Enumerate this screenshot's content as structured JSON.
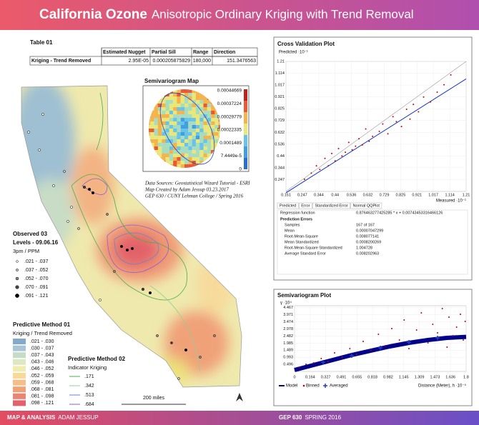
{
  "header": {
    "title": "California Ozone",
    "subtitle": "Anisotropic Ordinary Kriging with Trend Removal"
  },
  "table": {
    "title": "Table 01",
    "columns": [
      "Estimated Nugget",
      "Partial Sill",
      "Range",
      "Direction"
    ],
    "rows": [
      [
        "Kriging - Trend Removed",
        "2.95E-05",
        "0.000205875829",
        "180,000",
        "151.3476563"
      ]
    ]
  },
  "semivariogram_map": {
    "title": "Semivariogram Map",
    "scale": [
      "0.00044669",
      "0.00037224",
      "0.00029779",
      "0.00022335",
      "0.0001489",
      "7.4449e-5",
      "0"
    ]
  },
  "sources": [
    "Data Sources: Geostatistical Wizard Tutorial - ESRI",
    "Map Created by Adam Jessup 03.23.2017",
    "GEP 630 / CUNY Lehman College / Spring 2016"
  ],
  "observed": {
    "title": [
      "Observed 03",
      "Levels - 09.06.16"
    ],
    "unit": "3pm / PPM",
    "classes": [
      ".021 - .037",
      ".037 - .052",
      ".052 - .070",
      ".070 - .091",
      ".091 - .121"
    ],
    "colors": [
      "#ffffff",
      "#c8c8c8",
      "#8c8c8c",
      "#444444",
      "#000000"
    ]
  },
  "method01": {
    "title": "Predictive Method 01",
    "subtitle": "Kriging / Trend Removed",
    "classes": [
      ".021 - .030",
      ".030 - .037",
      ".037 - .043",
      ".043 - .046",
      ".046 - .052",
      ".052 - .059",
      ".059 - .068",
      ".068 - .081",
      ".081 - .098",
      ".098 - .121"
    ],
    "colors": [
      "#84aacb",
      "#a9c4d4",
      "#c7dcc8",
      "#dce8c0",
      "#f0ecb0",
      "#f7da9b",
      "#f5be87",
      "#f0a178",
      "#eb8472",
      "#e2626b"
    ]
  },
  "method02": {
    "title": "Predictive Method 02",
    "subtitle": "Indicator Kriging",
    "classes": [
      ".171",
      ".342",
      ".513",
      ".684"
    ],
    "colors": [
      "#4cae4c",
      "#8fd09a",
      "#5f86d6",
      "#8a5fd0"
    ]
  },
  "scale_label": "200 miles",
  "cross_validation": {
    "title": "Cross Validation Plot",
    "y_label": "Predicted ·10⁻¹",
    "x_label": "Measured ·10⁻¹",
    "xlim": [
      0.151,
      1.21
    ],
    "ylim": [
      0.151,
      1.21
    ],
    "xticks": [
      0.151,
      0.247,
      0.344,
      0.44,
      0.536,
      0.632,
      0.729,
      0.825,
      0.921,
      1.017,
      1.114,
      1.21
    ],
    "yticks": [
      0.247,
      0.344,
      0.44,
      0.536,
      0.632,
      0.729,
      0.825,
      0.921,
      1.017,
      1.114,
      1.21
    ],
    "x": [
      0.26,
      0.3,
      0.33,
      0.35,
      0.38,
      0.4,
      0.42,
      0.44,
      0.46,
      0.48,
      0.5,
      0.52,
      0.54,
      0.56,
      0.58,
      0.6,
      0.62,
      0.64,
      0.66,
      0.7,
      0.72,
      0.75,
      0.78,
      0.8,
      0.83,
      0.86,
      0.88,
      0.9,
      0.93,
      0.96,
      1.0,
      1.04,
      1.08,
      1.12
    ],
    "y": [
      0.25,
      0.3,
      0.36,
      0.33,
      0.42,
      0.36,
      0.46,
      0.4,
      0.5,
      0.44,
      0.47,
      0.55,
      0.49,
      0.52,
      0.58,
      0.53,
      0.66,
      0.56,
      0.6,
      0.64,
      0.7,
      0.62,
      0.76,
      0.72,
      0.68,
      0.82,
      0.74,
      0.86,
      0.8,
      0.92,
      0.88,
      0.96,
      1.02,
      1.1
    ],
    "slope": 0.876463277425285,
    "intercept": 0.00743453316466126,
    "tabs": [
      "Predicted",
      "Error",
      "Standardized Error",
      "Normal QQPlot"
    ],
    "regression_label": "Regression function",
    "regression_text": "0.876463277425285 * x + 0.00743453316466126",
    "errors_title": "Prediction Errors",
    "errors": [
      [
        "Samples",
        "167 of 167"
      ],
      [
        "Mean",
        "0.00007047299"
      ],
      [
        "Root-Mean-Square",
        "0.008077141"
      ],
      [
        "Mean Standardized",
        "0.0008200269"
      ],
      [
        "Root-Mean-Square Standardized",
        "1.004728"
      ],
      [
        "Average Standard Error",
        "0.008202963"
      ]
    ]
  },
  "semivariogram_plot": {
    "title": "Semivariogram Plot",
    "y_label": "γ ·10⁴",
    "x_label": "Distance (Meter), h ·10⁻⁵",
    "xlim": [
      0,
      1.8
    ],
    "ylim": [
      0,
      4.6
    ],
    "xticks": [
      0,
      0.164,
      0.327,
      0.491,
      0.655,
      0.818,
      0.982,
      1.145,
      1.309,
      1.473,
      1.636,
      1.8
    ],
    "yticks": [
      0.496,
      0.993,
      1.489,
      1.985,
      2.482,
      2.978,
      3.474,
      3.971,
      4.467
    ],
    "binned": {
      "name": "Binned",
      "color": "#c00000",
      "x": [
        0.05,
        0.12,
        0.2,
        0.28,
        0.35,
        0.42,
        0.5,
        0.58,
        0.65,
        0.72,
        0.8,
        0.88,
        0.95,
        1.02,
        1.1,
        1.15,
        1.2,
        1.28,
        1.33,
        1.4,
        1.45,
        1.5,
        1.55,
        1.6,
        1.62,
        1.66,
        1.7,
        1.74,
        1.77,
        1.79
      ],
      "y": [
        0.3,
        0.5,
        0.6,
        0.9,
        0.7,
        1.3,
        1.0,
        1.6,
        1.2,
        2.1,
        1.5,
        2.6,
        1.8,
        3.0,
        2.2,
        3.6,
        1.6,
        2.9,
        4.1,
        2.0,
        3.3,
        2.7,
        4.4,
        1.7,
        3.8,
        2.5,
        3.1,
        4.0,
        2.2,
        3.5
      ]
    },
    "model": {
      "name": "Model",
      "color": "#00008b",
      "x": [
        0,
        0.2,
        0.4,
        0.6,
        0.8,
        1.0,
        1.2,
        1.4,
        1.6,
        1.8
      ],
      "y": [
        0.1,
        0.45,
        0.8,
        1.15,
        1.45,
        1.75,
        2.0,
        2.2,
        2.35,
        2.42
      ]
    },
    "averaged": {
      "name": "Averaged",
      "color": "#1f3fbf",
      "x": [
        0.3,
        0.6,
        0.9,
        1.2,
        1.5
      ],
      "y": [
        0.65,
        1.1,
        1.65,
        2.05,
        2.35
      ]
    }
  },
  "footer": {
    "left_label": "MAP & ANALYSIS",
    "left_name": "ADAM JESSUP",
    "right_label": "GEP 630",
    "right_term": "SPRING 2016"
  }
}
